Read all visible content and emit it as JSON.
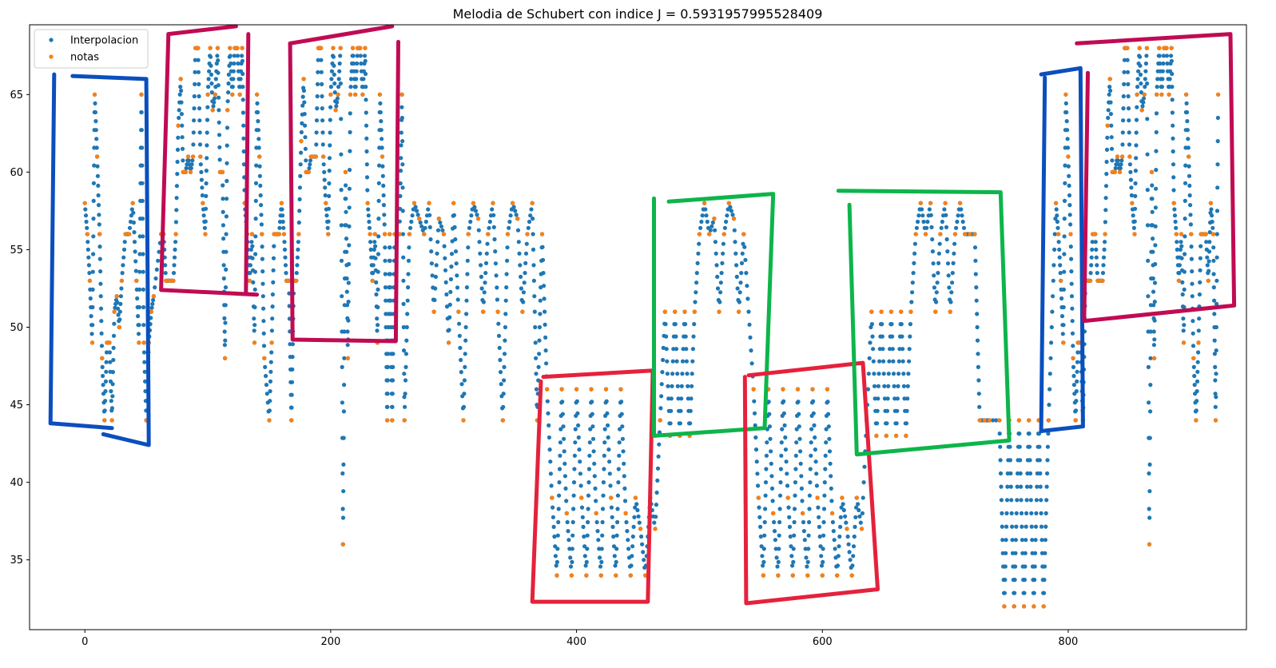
{
  "chart_data": {
    "type": "scatter",
    "title": "Melodia de Schubert con indice J = 0.5931957995528409",
    "xlabel": "",
    "ylabel": "",
    "xlim": [
      -45,
      945
    ],
    "ylim": [
      30.5,
      69.5
    ],
    "xticks": [
      0,
      200,
      400,
      600,
      800
    ],
    "yticks": [
      35,
      40,
      45,
      50,
      55,
      60,
      65
    ],
    "grid": false,
    "legend_position": "top-left",
    "series": [
      {
        "name": "Interpolacion",
        "color": "#1f77b4"
      },
      {
        "name": "notas",
        "color": "#ff7f0e"
      }
    ],
    "notas": [
      [
        0,
        58
      ],
      [
        2,
        56
      ],
      [
        4,
        53
      ],
      [
        6,
        49
      ],
      [
        8,
        65
      ],
      [
        10,
        61
      ],
      [
        12,
        56
      ],
      [
        14,
        48
      ],
      [
        16,
        44
      ],
      [
        18,
        49
      ],
      [
        20,
        49
      ],
      [
        22,
        44
      ],
      [
        24,
        51
      ],
      [
        26,
        52
      ],
      [
        28,
        50
      ],
      [
        30,
        53
      ],
      [
        33,
        56
      ],
      [
        36,
        56
      ],
      [
        39,
        58
      ],
      [
        42,
        53
      ],
      [
        44,
        49
      ],
      [
        46,
        65
      ],
      [
        48,
        49
      ],
      [
        50,
        44
      ],
      [
        52,
        49
      ],
      [
        54,
        51
      ],
      [
        56,
        52
      ],
      [
        62,
        56
      ],
      [
        64,
        56
      ],
      [
        66,
        53
      ],
      [
        68,
        53
      ],
      [
        70,
        53
      ],
      [
        72,
        53
      ],
      [
        74,
        56
      ],
      [
        76,
        63
      ],
      [
        78,
        66
      ],
      [
        80,
        60
      ],
      [
        82,
        60
      ],
      [
        84,
        61
      ],
      [
        86,
        60
      ],
      [
        88,
        61
      ],
      [
        90,
        68
      ],
      [
        92,
        68
      ],
      [
        94,
        61
      ],
      [
        96,
        58
      ],
      [
        98,
        56
      ],
      [
        100,
        65
      ],
      [
        102,
        68
      ],
      [
        104,
        64
      ],
      [
        106,
        65
      ],
      [
        108,
        68
      ],
      [
        110,
        60
      ],
      [
        112,
        60
      ],
      [
        114,
        48
      ],
      [
        116,
        64
      ],
      [
        118,
        68
      ],
      [
        120,
        65
      ],
      [
        122,
        68
      ],
      [
        124,
        68
      ],
      [
        126,
        65
      ],
      [
        128,
        68
      ],
      [
        130,
        58
      ],
      [
        132,
        56
      ],
      [
        134,
        53
      ],
      [
        136,
        56
      ],
      [
        138,
        49
      ],
      [
        140,
        65
      ],
      [
        142,
        61
      ],
      [
        144,
        56
      ],
      [
        146,
        48
      ],
      [
        150,
        44
      ],
      [
        152,
        49
      ],
      [
        154,
        56
      ],
      [
        156,
        56
      ],
      [
        158,
        56
      ],
      [
        160,
        58
      ],
      [
        162,
        56
      ],
      [
        164,
        53
      ],
      [
        166,
        53
      ],
      [
        168,
        44
      ],
      [
        170,
        53
      ],
      [
        172,
        53
      ],
      [
        174,
        56
      ],
      [
        176,
        62
      ],
      [
        178,
        66
      ],
      [
        180,
        60
      ],
      [
        182,
        60
      ],
      [
        184,
        61
      ],
      [
        186,
        61
      ],
      [
        188,
        61
      ],
      [
        190,
        68
      ],
      [
        192,
        68
      ],
      [
        194,
        61
      ],
      [
        196,
        58
      ],
      [
        198,
        56
      ],
      [
        200,
        65
      ],
      [
        202,
        68
      ],
      [
        204,
        64
      ],
      [
        206,
        65
      ],
      [
        208,
        68
      ],
      [
        210,
        36
      ],
      [
        212,
        60
      ],
      [
        214,
        48
      ],
      [
        216,
        65
      ],
      [
        218,
        68
      ],
      [
        220,
        65
      ],
      [
        222,
        68
      ],
      [
        224,
        68
      ],
      [
        226,
        65
      ],
      [
        228,
        68
      ],
      [
        230,
        58
      ],
      [
        232,
        56
      ],
      [
        234,
        53
      ],
      [
        236,
        56
      ],
      [
        238,
        49
      ],
      [
        240,
        65
      ],
      [
        242,
        61
      ],
      [
        244,
        56
      ],
      [
        246,
        44
      ],
      [
        248,
        56
      ],
      [
        250,
        44
      ],
      [
        252,
        56
      ],
      [
        254,
        56
      ],
      [
        256,
        56
      ],
      [
        258,
        65
      ],
      [
        260,
        44
      ],
      [
        264,
        56
      ],
      [
        268,
        58
      ],
      [
        272,
        57
      ],
      [
        276,
        56
      ],
      [
        280,
        58
      ],
      [
        284,
        51
      ],
      [
        288,
        57
      ],
      [
        292,
        56
      ],
      [
        296,
        49
      ],
      [
        300,
        58
      ],
      [
        304,
        51
      ],
      [
        308,
        44
      ],
      [
        312,
        56
      ],
      [
        316,
        58
      ],
      [
        320,
        57
      ],
      [
        324,
        51
      ],
      [
        328,
        56
      ],
      [
        332,
        58
      ],
      [
        336,
        51
      ],
      [
        340,
        44
      ],
      [
        344,
        56
      ],
      [
        348,
        58
      ],
      [
        352,
        57
      ],
      [
        356,
        51
      ],
      [
        360,
        56
      ],
      [
        364,
        58
      ],
      [
        368,
        44
      ],
      [
        372,
        56
      ],
      [
        376,
        46
      ],
      [
        380,
        39
      ],
      [
        384,
        34
      ],
      [
        388,
        46
      ],
      [
        392,
        38
      ],
      [
        396,
        34
      ],
      [
        400,
        46
      ],
      [
        404,
        39
      ],
      [
        408,
        34
      ],
      [
        412,
        46
      ],
      [
        416,
        38
      ],
      [
        420,
        34
      ],
      [
        424,
        46
      ],
      [
        428,
        39
      ],
      [
        432,
        34
      ],
      [
        436,
        46
      ],
      [
        440,
        38
      ],
      [
        444,
        34
      ],
      [
        448,
        39
      ],
      [
        452,
        37
      ],
      [
        456,
        34
      ],
      [
        460,
        39
      ],
      [
        464,
        37
      ],
      [
        468,
        44
      ],
      [
        472,
        51
      ],
      [
        476,
        43
      ],
      [
        480,
        51
      ],
      [
        484,
        43
      ],
      [
        488,
        51
      ],
      [
        492,
        43
      ],
      [
        496,
        51
      ],
      [
        500,
        56
      ],
      [
        504,
        58
      ],
      [
        508,
        56
      ],
      [
        512,
        57
      ],
      [
        516,
        51
      ],
      [
        520,
        56
      ],
      [
        524,
        58
      ],
      [
        528,
        57
      ],
      [
        532,
        51
      ],
      [
        536,
        56
      ],
      [
        544,
        46
      ],
      [
        548,
        39
      ],
      [
        552,
        34
      ],
      [
        556,
        46
      ],
      [
        560,
        38
      ],
      [
        564,
        34
      ],
      [
        568,
        46
      ],
      [
        572,
        39
      ],
      [
        576,
        34
      ],
      [
        580,
        46
      ],
      [
        584,
        38
      ],
      [
        588,
        34
      ],
      [
        592,
        46
      ],
      [
        596,
        39
      ],
      [
        600,
        34
      ],
      [
        604,
        46
      ],
      [
        608,
        38
      ],
      [
        612,
        34
      ],
      [
        616,
        39
      ],
      [
        620,
        37
      ],
      [
        624,
        34
      ],
      [
        628,
        39
      ],
      [
        632,
        37
      ],
      [
        640,
        51
      ],
      [
        644,
        43
      ],
      [
        648,
        51
      ],
      [
        652,
        43
      ],
      [
        656,
        51
      ],
      [
        660,
        43
      ],
      [
        664,
        51
      ],
      [
        668,
        43
      ],
      [
        672,
        51
      ],
      [
        676,
        56
      ],
      [
        680,
        58
      ],
      [
        684,
        56
      ],
      [
        688,
        58
      ],
      [
        692,
        51
      ],
      [
        696,
        56
      ],
      [
        700,
        58
      ],
      [
        704,
        51
      ],
      [
        708,
        56
      ],
      [
        712,
        58
      ],
      [
        716,
        56
      ],
      [
        720,
        56
      ],
      [
        724,
        56
      ],
      [
        728,
        44
      ],
      [
        732,
        44
      ],
      [
        736,
        44
      ],
      [
        744,
        44
      ],
      [
        748,
        32
      ],
      [
        752,
        44
      ],
      [
        756,
        32
      ],
      [
        760,
        44
      ],
      [
        764,
        32
      ],
      [
        768,
        44
      ],
      [
        772,
        32
      ],
      [
        776,
        44
      ],
      [
        780,
        32
      ],
      [
        784,
        44
      ],
      [
        790,
        58
      ],
      [
        792,
        56
      ],
      [
        794,
        53
      ],
      [
        796,
        49
      ],
      [
        798,
        65
      ],
      [
        800,
        61
      ],
      [
        802,
        56
      ],
      [
        804,
        48
      ],
      [
        806,
        44
      ],
      [
        808,
        49
      ],
      [
        810,
        49
      ],
      [
        812,
        44
      ],
      [
        814,
        53
      ],
      [
        816,
        53
      ],
      [
        818,
        53
      ],
      [
        820,
        56
      ],
      [
        822,
        56
      ],
      [
        824,
        53
      ],
      [
        826,
        53
      ],
      [
        828,
        53
      ],
      [
        830,
        56
      ],
      [
        832,
        63
      ],
      [
        834,
        66
      ],
      [
        836,
        60
      ],
      [
        838,
        60
      ],
      [
        840,
        61
      ],
      [
        842,
        60
      ],
      [
        844,
        61
      ],
      [
        846,
        68
      ],
      [
        848,
        68
      ],
      [
        850,
        61
      ],
      [
        852,
        58
      ],
      [
        854,
        56
      ],
      [
        856,
        65
      ],
      [
        858,
        68
      ],
      [
        860,
        64
      ],
      [
        862,
        65
      ],
      [
        864,
        68
      ],
      [
        866,
        36
      ],
      [
        868,
        60
      ],
      [
        870,
        48
      ],
      [
        872,
        65
      ],
      [
        874,
        68
      ],
      [
        876,
        65
      ],
      [
        878,
        68
      ],
      [
        880,
        68
      ],
      [
        882,
        65
      ],
      [
        884,
        68
      ],
      [
        886,
        58
      ],
      [
        888,
        56
      ],
      [
        890,
        53
      ],
      [
        892,
        56
      ],
      [
        894,
        49
      ],
      [
        896,
        65
      ],
      [
        898,
        61
      ],
      [
        900,
        56
      ],
      [
        902,
        48
      ],
      [
        904,
        44
      ],
      [
        906,
        49
      ],
      [
        908,
        56
      ],
      [
        910,
        56
      ],
      [
        912,
        56
      ],
      [
        914,
        53
      ],
      [
        916,
        58
      ],
      [
        918,
        56
      ],
      [
        920,
        44
      ],
      [
        922,
        65
      ]
    ]
  },
  "legend": {
    "interp_label": "Interpolacion",
    "notes_label": "notas"
  },
  "annotations": [
    {
      "color": "#0b4fbe",
      "points": [
        [
          -25,
          66.3
        ],
        [
          -28,
          43.8
        ],
        [
          22,
          43.5
        ]
      ]
    },
    {
      "color": "#0b4fbe",
      "points": [
        [
          -10,
          66.2
        ],
        [
          50,
          66
        ]
      ]
    },
    {
      "color": "#0b4fbe",
      "points": [
        [
          50,
          66
        ],
        [
          52,
          42.4
        ],
        [
          15,
          43.1
        ]
      ]
    },
    {
      "color": "#c00b53",
      "points": [
        [
          68,
          68.9
        ],
        [
          62,
          52.4
        ],
        [
          140,
          52.1
        ]
      ]
    },
    {
      "color": "#c00b53",
      "points": [
        [
          68,
          68.9
        ],
        [
          123,
          69.4
        ]
      ]
    },
    {
      "color": "#c00b53",
      "points": [
        [
          133,
          68.9
        ],
        [
          131,
          52.2
        ]
      ]
    },
    {
      "color": "#c00b53",
      "points": [
        [
          167,
          68.3
        ],
        [
          169,
          49.2
        ],
        [
          253,
          49.1
        ],
        [
          255,
          68.4
        ]
      ]
    },
    {
      "color": "#c00b53",
      "points": [
        [
          167,
          68.3
        ],
        [
          250,
          69.4
        ]
      ]
    },
    {
      "color": "#e5213c",
      "points": [
        [
          371,
          46.5
        ],
        [
          364,
          32.3
        ],
        [
          458,
          32.3
        ],
        [
          462,
          47.2
        ],
        [
          373,
          46.8
        ]
      ]
    },
    {
      "color": "#0db54a",
      "points": [
        [
          463,
          58.3
        ],
        [
          463,
          43
        ],
        [
          553,
          43.5
        ],
        [
          560,
          58.6
        ],
        [
          475,
          58.1
        ]
      ]
    },
    {
      "color": "#e5213c",
      "points": [
        [
          537,
          46.8
        ],
        [
          538,
          32.2
        ],
        [
          645,
          33.1
        ],
        [
          633,
          47.7
        ],
        [
          540,
          46.9
        ]
      ]
    },
    {
      "color": "#0db54a",
      "points": [
        [
          613,
          58.8
        ],
        [
          745,
          58.7
        ],
        [
          752,
          42.7
        ],
        [
          628,
          41.8
        ],
        [
          622,
          57.9
        ]
      ]
    },
    {
      "color": "#0b4fbe",
      "points": [
        [
          781,
          66.1
        ],
        [
          778,
          43.3
        ],
        [
          812,
          43.6
        ],
        [
          810,
          66.7
        ],
        [
          778,
          66.3
        ]
      ]
    },
    {
      "color": "#c00b53",
      "points": [
        [
          816,
          66.4
        ],
        [
          813,
          50.4
        ],
        [
          935,
          51.4
        ],
        [
          932,
          68.9
        ],
        [
          807,
          68.3
        ]
      ]
    }
  ]
}
